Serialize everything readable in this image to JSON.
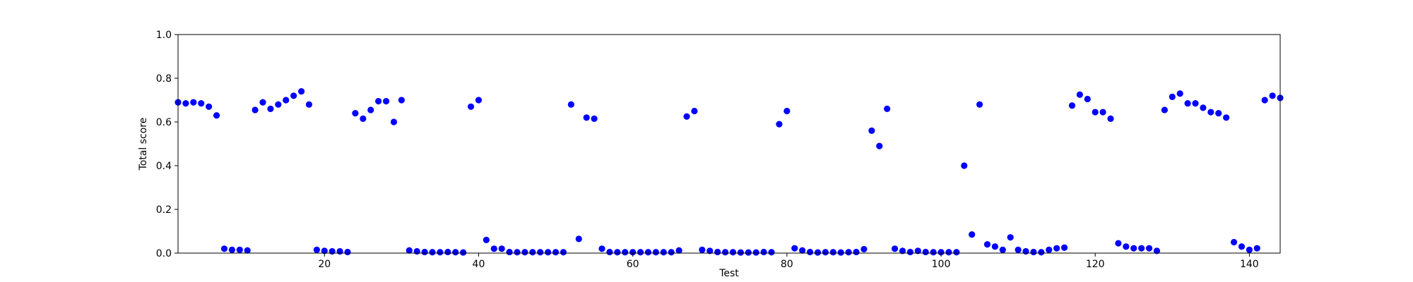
{
  "chart_data": {
    "type": "scatter",
    "xlabel": "Test",
    "ylabel": "Total score",
    "xlim": [
      1,
      144
    ],
    "ylim": [
      0.0,
      1.0
    ],
    "xticks": [
      20,
      40,
      60,
      80,
      100,
      120,
      140
    ],
    "xtick_labels": [
      "20",
      "40",
      "60",
      "80",
      "100",
      "120",
      "140"
    ],
    "yticks": [
      0.0,
      0.2,
      0.4,
      0.6,
      0.8,
      1.0
    ],
    "ytick_labels": [
      "0.0",
      "0.2",
      "0.4",
      "0.6",
      "0.8",
      "1.0"
    ],
    "grid": false,
    "marker_color": "#0000ff",
    "x": [
      1,
      2,
      3,
      4,
      5,
      6,
      7,
      8,
      9,
      10,
      11,
      12,
      13,
      14,
      15,
      16,
      17,
      18,
      19,
      20,
      21,
      22,
      23,
      24,
      25,
      26,
      27,
      28,
      29,
      30,
      31,
      32,
      33,
      34,
      35,
      36,
      37,
      38,
      39,
      40,
      41,
      42,
      43,
      44,
      45,
      46,
      47,
      48,
      49,
      50,
      51,
      52,
      53,
      54,
      55,
      56,
      57,
      58,
      59,
      60,
      61,
      62,
      63,
      64,
      65,
      66,
      67,
      68,
      69,
      70,
      71,
      72,
      73,
      74,
      75,
      76,
      77,
      78,
      79,
      80,
      81,
      82,
      83,
      84,
      85,
      86,
      87,
      88,
      89,
      90,
      91,
      92,
      93,
      94,
      95,
      96,
      97,
      98,
      99,
      100,
      101,
      102,
      103,
      104,
      105,
      106,
      107,
      108,
      109,
      110,
      111,
      112,
      113,
      114,
      115,
      116,
      117,
      118,
      119,
      120,
      121,
      122,
      123,
      124,
      125,
      126,
      127,
      128,
      129,
      130,
      131,
      132,
      133,
      134,
      135,
      136,
      137,
      138,
      139,
      140,
      141,
      142,
      143,
      144
    ],
    "y": [
      0.69,
      0.685,
      0.69,
      0.685,
      0.67,
      0.63,
      0.02,
      0.015,
      0.015,
      0.012,
      0.655,
      0.69,
      0.66,
      0.68,
      0.7,
      0.72,
      0.74,
      0.68,
      0.015,
      0.01,
      0.008,
      0.008,
      0.005,
      0.64,
      0.615,
      0.655,
      0.695,
      0.695,
      0.6,
      0.7,
      0.012,
      0.008,
      0.005,
      0.004,
      0.004,
      0.005,
      0.004,
      0.003,
      0.67,
      0.7,
      0.06,
      0.02,
      0.02,
      0.005,
      0.004,
      0.004,
      0.004,
      0.004,
      0.004,
      0.004,
      0.004,
      0.68,
      0.065,
      0.62,
      0.615,
      0.02,
      0.005,
      0.004,
      0.004,
      0.004,
      0.004,
      0.004,
      0.004,
      0.004,
      0.004,
      0.012,
      0.625,
      0.65,
      0.015,
      0.01,
      0.005,
      0.004,
      0.004,
      0.003,
      0.003,
      0.003,
      0.005,
      0.004,
      0.59,
      0.65,
      0.022,
      0.012,
      0.005,
      0.003,
      0.004,
      0.004,
      0.003,
      0.004,
      0.005,
      0.018,
      0.56,
      0.49,
      0.66,
      0.02,
      0.01,
      0.005,
      0.01,
      0.005,
      0.004,
      0.004,
      0.004,
      0.004,
      0.4,
      0.085,
      0.68,
      0.04,
      0.03,
      0.015,
      0.072,
      0.015,
      0.008,
      0.005,
      0.004,
      0.015,
      0.022,
      0.025,
      0.675,
      0.725,
      0.705,
      0.645,
      0.645,
      0.615,
      0.045,
      0.03,
      0.022,
      0.022,
      0.022,
      0.01,
      0.655,
      0.715,
      0.73,
      0.685,
      0.685,
      0.665,
      0.645,
      0.64,
      0.62,
      0.05,
      0.03,
      0.015,
      0.022,
      0.7,
      0.72,
      0.71
    ]
  }
}
